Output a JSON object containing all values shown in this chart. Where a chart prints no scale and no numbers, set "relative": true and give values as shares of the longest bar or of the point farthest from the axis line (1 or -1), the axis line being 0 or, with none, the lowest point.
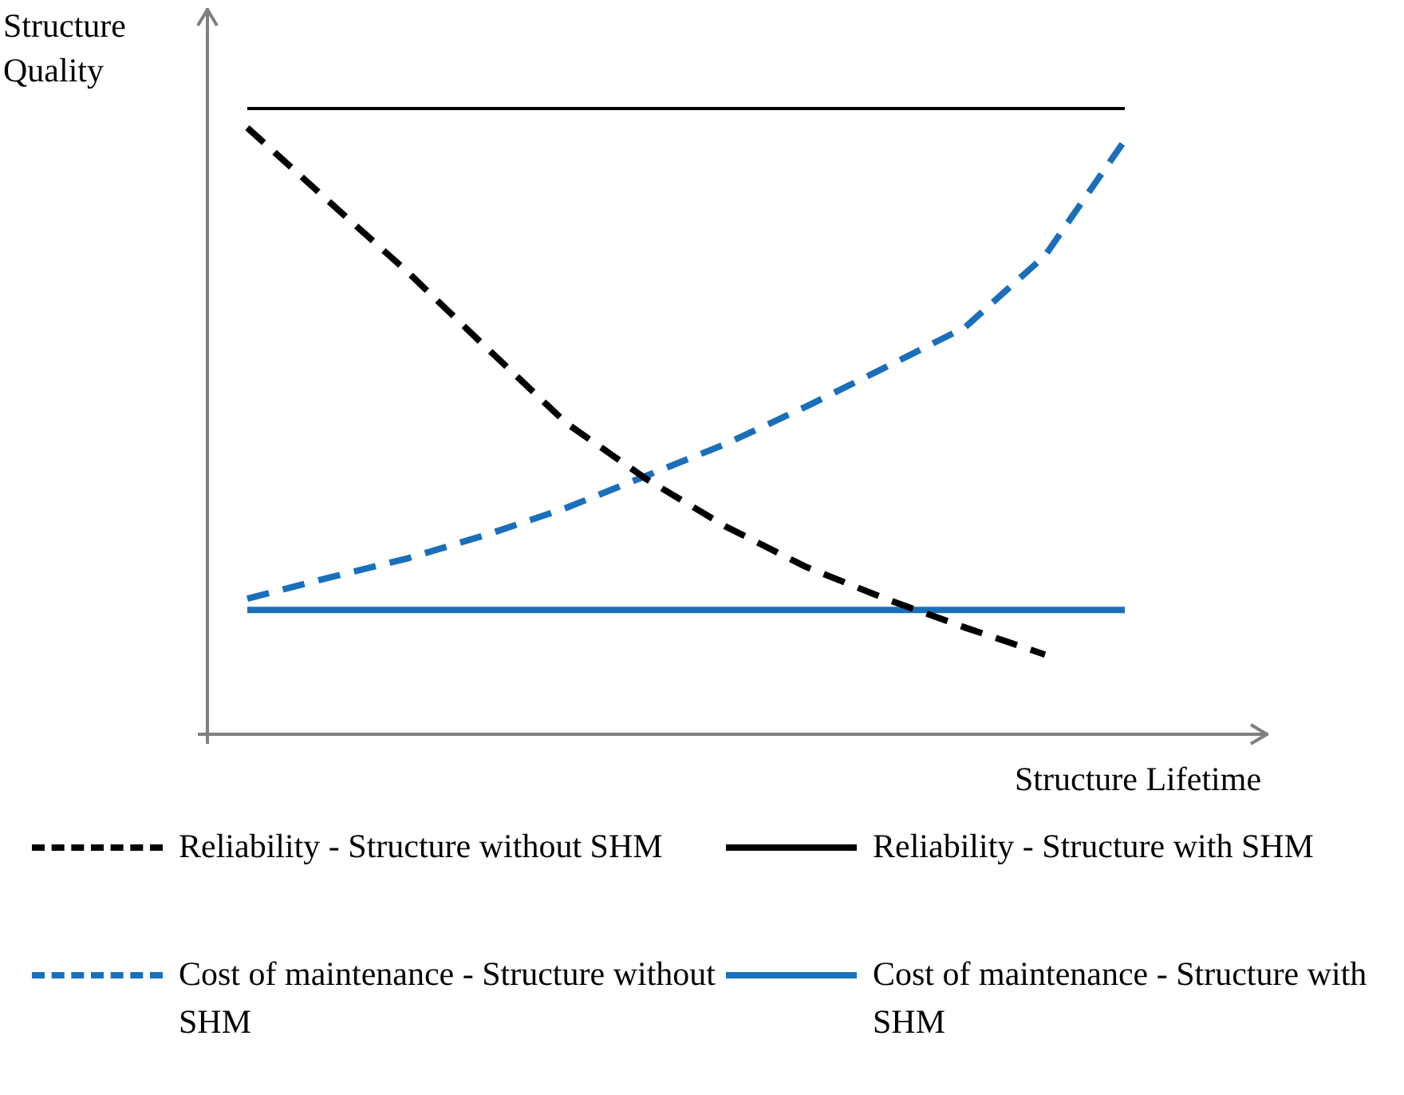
{
  "chart_data": {
    "type": "line",
    "relative": true,
    "xlabel": "Structure Lifetime",
    "ylabel": "Structure Quality",
    "legend": "bottom",
    "marker": "none",
    "categories": [
      null,
      null,
      null,
      null,
      null,
      null,
      null,
      null,
      null,
      null,
      null,
      null
    ],
    "series": [
      {
        "name": "Reliability - Structure without SHM",
        "color": "#000000",
        "line_style": "dashed",
        "values": [
          0.967,
          0.852,
          0.738,
          0.616,
          0.496,
          0.407,
          0.331,
          0.267,
          0.216,
          0.17,
          0.127,
          null
        ]
      },
      {
        "name": "Reliability - Structure with SHM",
        "color": "#000000",
        "line_style": "solid",
        "values": [
          1,
          1,
          1,
          1,
          1,
          1,
          1,
          1,
          1,
          1,
          1,
          1
        ]
      },
      {
        "name": "Cost of maintenance - Structure without SHM",
        "color": "#1a6fba",
        "line_style": "dashed",
        "values": [
          0.216,
          0.249,
          0.28,
          0.318,
          0.361,
          0.412,
          0.463,
          0.522,
          0.585,
          0.649,
          0.763,
          0.947
        ]
      },
      {
        "name": "Cost of maintenance - Structure with SHM",
        "color": "#1a6fba",
        "line_style": "solid",
        "values": [
          0.198,
          0.198,
          0.198,
          0.198,
          0.198,
          0.198,
          0.198,
          0.198,
          0.198,
          0.198,
          0.198,
          0.198
        ]
      }
    ]
  }
}
